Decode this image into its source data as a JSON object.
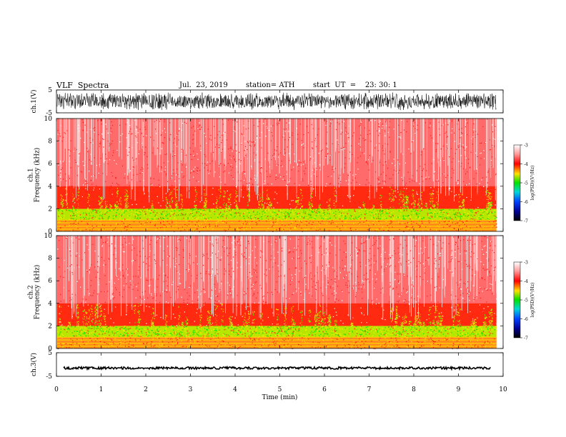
{
  "header": {
    "title": "VLF  Spectra",
    "date": "Jul.  23, 2019",
    "station": "station= ATH",
    "start_ut": "start  UT  =    23: 30: 1"
  },
  "chart_data": [
    {
      "type": "line",
      "id": "ch1-waveform",
      "ylabel": "ch.1(V)",
      "xlim": [
        0,
        10
      ],
      "ylim": [
        -5,
        5
      ],
      "yticks": [
        5,
        -5
      ],
      "x_end": 9.85,
      "signal_amplitude": [
        -4,
        4
      ],
      "color": "#000000"
    },
    {
      "type": "heatmap",
      "id": "ch1-spectrogram",
      "ylabel": "ch.1\nFrequency (kHz)",
      "ylabel_lines": [
        "ch.1",
        "Frequency (kHz)"
      ],
      "xlim": [
        0,
        10
      ],
      "x_end": 9.85,
      "ylim": [
        0,
        10
      ],
      "yticks": [
        0,
        2,
        4,
        6,
        8,
        10
      ],
      "colorbar": {
        "label": "log(PSD)(V²/Hz)",
        "range": [
          -7,
          -3
        ],
        "ticks": [
          -3,
          -4,
          -5,
          -6,
          -7
        ]
      },
      "bands": [
        {
          "from": 0,
          "to": 1.0,
          "dominant": "orange/yellow"
        },
        {
          "from": 1.0,
          "to": 2.0,
          "dominant": "green/yellow"
        },
        {
          "from": 2.0,
          "to": 4.0,
          "dominant": "red with yellow-green bursts"
        },
        {
          "from": 4.0,
          "to": 10.0,
          "dominant": "red/white speckle"
        }
      ]
    },
    {
      "type": "heatmap",
      "id": "ch2-spectrogram",
      "ylabel": "ch.2\nFrequency (kHz)",
      "ylabel_lines": [
        "ch.2",
        "Frequency (kHz)"
      ],
      "xlim": [
        0,
        10
      ],
      "x_end": 9.85,
      "ylim": [
        0,
        10
      ],
      "yticks": [
        0,
        2,
        4,
        6,
        8,
        10
      ],
      "colorbar": {
        "label": "log(PSD)(V²/Hz)",
        "range": [
          -7,
          -3
        ],
        "ticks": [
          -3,
          -4,
          -5,
          -6,
          -7
        ]
      },
      "bands": [
        {
          "from": 0,
          "to": 1.0,
          "dominant": "orange/yellow"
        },
        {
          "from": 1.0,
          "to": 2.0,
          "dominant": "green/yellow"
        },
        {
          "from": 2.0,
          "to": 4.0,
          "dominant": "red with yellow-green bursts"
        },
        {
          "from": 4.0,
          "to": 10.0,
          "dominant": "red/white speckle"
        }
      ]
    },
    {
      "type": "line",
      "id": "ch3-waveform",
      "ylabel": "ch.3(V)",
      "xlim": [
        0,
        10
      ],
      "ylim": [
        -5,
        5
      ],
      "yticks": [
        5,
        -5
      ],
      "x_end": 9.85,
      "signal_level": -1.5,
      "color": "#000000"
    }
  ],
  "xaxis": {
    "label": "Time  (min)",
    "ticks": [
      0,
      1,
      2,
      3,
      4,
      5,
      6,
      7,
      8,
      9,
      10
    ]
  }
}
